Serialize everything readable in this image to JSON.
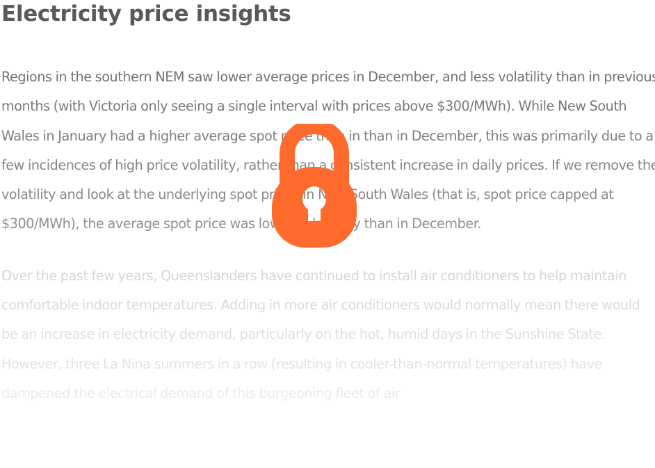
{
  "article": {
    "title": "Electricity price insights",
    "paragraphs": [
      "Regions in the southern NEM saw lower average prices in December, and less volatility than in previous months (with Victoria only seeing a single interval with prices above $300/MWh). While New South Wales in January had a higher average spot price than in than in December, this was primarily due to a few incidences of high price volatility, rather than a consistent increase in daily prices. If we remove the volatility and look at the underlying spot prices in New South Wales (that is, spot price capped at $300/MWh), the average spot price was lower in January than in December.",
      "Over the past few years, Queenslanders have continued to install air conditioners to help maintain comfortable indoor temperatures. Adding in more air conditioners would normally mean there would be an increase in electricity demand, particularly on the hot, humid days in the Sunshine State. However, three La Nina summers in a row (resulting in cooler-than-normal temperatures) have dampened the electrical demand of this burgeoning fleet of air"
    ]
  },
  "paywall": {
    "icon": "lock-icon",
    "color": "#ff6b2c"
  }
}
